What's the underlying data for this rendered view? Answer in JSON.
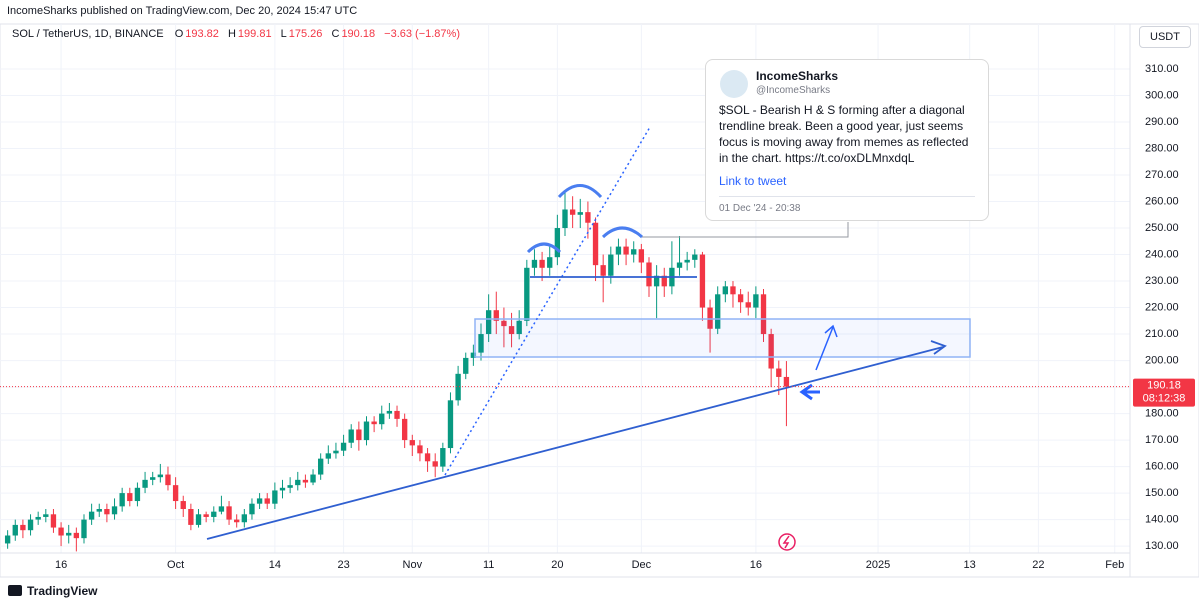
{
  "chart_data": {
    "type": "candlestick",
    "header": "IncomeSharks published on TradingView.com, Dec 20, 2024 15:47 UTC",
    "title": "SOL / TetherUS, 1D, BINANCE",
    "legend_labels": [
      "O",
      "H",
      "L",
      "C"
    ],
    "change_label": "−3.63 (−1.87%)",
    "currency": "USDT",
    "countdown": "08:12:38",
    "brand": "TradingView",
    "up_color": "#089981",
    "down_color": "#f23645",
    "grid": true,
    "x": [
      "2024-09-09",
      "2024-09-10",
      "2024-09-11",
      "2024-09-12",
      "2024-09-13",
      "2024-09-14",
      "2024-09-15",
      "2024-09-16",
      "2024-09-17",
      "2024-09-18",
      "2024-09-19",
      "2024-09-20",
      "2024-09-21",
      "2024-09-22",
      "2024-09-23",
      "2024-09-24",
      "2024-09-25",
      "2024-09-26",
      "2024-09-27",
      "2024-09-28",
      "2024-09-29",
      "2024-09-30",
      "2024-10-01",
      "2024-10-02",
      "2024-10-03",
      "2024-10-04",
      "2024-10-05",
      "2024-10-06",
      "2024-10-07",
      "2024-10-08",
      "2024-10-09",
      "2024-10-10",
      "2024-10-11",
      "2024-10-12",
      "2024-10-13",
      "2024-10-14",
      "2024-10-15",
      "2024-10-16",
      "2024-10-17",
      "2024-10-18",
      "2024-10-19",
      "2024-10-20",
      "2024-10-21",
      "2024-10-22",
      "2024-10-23",
      "2024-10-24",
      "2024-10-25",
      "2024-10-26",
      "2024-10-27",
      "2024-10-28",
      "2024-10-29",
      "2024-10-30",
      "2024-10-31",
      "2024-11-01",
      "2024-11-02",
      "2024-11-03",
      "2024-11-04",
      "2024-11-05",
      "2024-11-06",
      "2024-11-07",
      "2024-11-08",
      "2024-11-09",
      "2024-11-10",
      "2024-11-11",
      "2024-11-12",
      "2024-11-13",
      "2024-11-14",
      "2024-11-15",
      "2024-11-16",
      "2024-11-17",
      "2024-11-18",
      "2024-11-19",
      "2024-11-20",
      "2024-11-21",
      "2024-11-22",
      "2024-11-23",
      "2024-11-24",
      "2024-11-25",
      "2024-11-26",
      "2024-11-27",
      "2024-11-28",
      "2024-11-29",
      "2024-11-30",
      "2024-12-01",
      "2024-12-02",
      "2024-12-03",
      "2024-12-04",
      "2024-12-05",
      "2024-12-06",
      "2024-12-07",
      "2024-12-08",
      "2024-12-09",
      "2024-12-10",
      "2024-12-11",
      "2024-12-12",
      "2024-12-13",
      "2024-12-14",
      "2024-12-15",
      "2024-12-16",
      "2024-12-17",
      "2024-12-18",
      "2024-12-19",
      "2024-12-20"
    ],
    "open": [
      131,
      134,
      138,
      136,
      140,
      141,
      142,
      137,
      134,
      135,
      133,
      140,
      143,
      144,
      142,
      145,
      150,
      147,
      152,
      155,
      156,
      157,
      153,
      147,
      144,
      138,
      142,
      141,
      143,
      145,
      140,
      139,
      142,
      146,
      148,
      146,
      151,
      152,
      153,
      155,
      154,
      157,
      163,
      165,
      166,
      169,
      174,
      170,
      177,
      176,
      180,
      181,
      178,
      170,
      168,
      165,
      162,
      160,
      167,
      185,
      195,
      201,
      203,
      210,
      219,
      215,
      213,
      210,
      215,
      235,
      238,
      235,
      239,
      250,
      257,
      255,
      256,
      252,
      236,
      232,
      240,
      243,
      240,
      242,
      237,
      228,
      232,
      228,
      235,
      237,
      238,
      240,
      220,
      212,
      225,
      228,
      225,
      222,
      220,
      225,
      210,
      197,
      193.82
    ],
    "high": [
      136,
      140,
      140,
      142,
      143,
      144,
      144,
      139,
      138,
      137,
      142,
      146,
      146,
      146,
      148,
      152,
      152,
      154,
      158,
      158,
      161,
      160,
      156,
      149,
      146,
      144,
      143,
      145,
      149,
      147,
      142,
      144,
      148,
      150,
      150,
      154,
      155,
      156,
      158,
      157,
      159,
      165,
      168,
      169,
      172,
      176,
      177,
      179,
      179,
      183,
      184,
      183,
      180,
      172,
      170,
      167,
      165,
      169,
      188,
      198,
      203,
      206,
      214,
      225,
      226,
      220,
      218,
      219,
      238,
      242,
      241,
      243,
      255,
      264,
      262,
      261,
      260,
      254,
      240,
      243,
      246,
      246,
      245,
      244,
      239,
      236,
      235,
      245,
      247,
      241,
      242,
      241,
      223,
      228,
      230,
      230,
      227,
      226,
      228,
      227,
      212,
      200,
      199.81
    ],
    "low": [
      129,
      132,
      133,
      134,
      138,
      139,
      135,
      130,
      131,
      128,
      131,
      138,
      141,
      139,
      140,
      143,
      145,
      145,
      150,
      153,
      154,
      151,
      144,
      141,
      136,
      137,
      139,
      139,
      142,
      138,
      137,
      137,
      140,
      144,
      144,
      144,
      148,
      150,
      151,
      152,
      153,
      155,
      161,
      163,
      164,
      167,
      166,
      168,
      173,
      174,
      178,
      175,
      167,
      164,
      162,
      158,
      156,
      158,
      165,
      183,
      193,
      198,
      200,
      207,
      210,
      205,
      205,
      208,
      213,
      232,
      230,
      232,
      236,
      247,
      250,
      250,
      246,
      230,
      222,
      229,
      236,
      236,
      237,
      233,
      224,
      216,
      224,
      225,
      232,
      234,
      235,
      215,
      203,
      210,
      222,
      220,
      218,
      217,
      216,
      207,
      190,
      187,
      175.26
    ],
    "close": [
      134,
      138,
      136,
      140,
      141,
      142,
      137,
      134,
      135,
      133,
      140,
      143,
      144,
      142,
      145,
      150,
      147,
      152,
      155,
      156,
      157,
      153,
      147,
      144,
      138,
      142,
      141,
      143,
      145,
      140,
      139,
      142,
      146,
      148,
      146,
      151,
      152,
      153,
      155,
      154,
      157,
      163,
      165,
      166,
      169,
      174,
      170,
      177,
      176,
      180,
      181,
      178,
      170,
      168,
      165,
      162,
      160,
      167,
      185,
      195,
      201,
      203,
      210,
      219,
      215,
      213,
      210,
      215,
      235,
      238,
      235,
      239,
      250,
      257,
      255,
      256,
      252,
      236,
      232,
      240,
      243,
      240,
      242,
      237,
      228,
      232,
      228,
      235,
      237,
      238,
      240,
      220,
      212,
      225,
      228,
      225,
      222,
      220,
      225,
      210,
      197,
      193.82,
      190.18
    ],
    "xlim": [
      "2024-09-08",
      "2025-02-03"
    ],
    "xticks": [
      {
        "value": "2024-09-16",
        "label": "16"
      },
      {
        "value": "2024-10-01",
        "label": "Oct"
      },
      {
        "value": "2024-10-14",
        "label": "14"
      },
      {
        "value": "2024-10-23",
        "label": "23"
      },
      {
        "value": "2024-11-01",
        "label": "Nov"
      },
      {
        "value": "2024-11-11",
        "label": "11"
      },
      {
        "value": "2024-11-20",
        "label": "20"
      },
      {
        "value": "2024-12-01",
        "label": "Dec"
      },
      {
        "value": "2024-12-16",
        "label": "16"
      },
      {
        "value": "2025-01-01",
        "label": "2025"
      },
      {
        "value": "2025-01-13",
        "label": "13"
      },
      {
        "value": "2025-01-22",
        "label": "22"
      },
      {
        "value": "2025-02-01",
        "label": "Feb"
      }
    ],
    "ylim": [
      127.4,
      318.3
    ],
    "yticks": [
      {
        "value": 130,
        "label": "130.00"
      },
      {
        "value": 140,
        "label": "140.00"
      },
      {
        "value": 150,
        "label": "150.00"
      },
      {
        "value": 160,
        "label": "160.00"
      },
      {
        "value": 170,
        "label": "170.00"
      },
      {
        "value": 180,
        "label": "180.00"
      },
      {
        "value": 190,
        "label": "190.00"
      },
      {
        "value": 200,
        "label": "200.00"
      },
      {
        "value": 210,
        "label": "210.00"
      },
      {
        "value": 220,
        "label": "220.00"
      },
      {
        "value": 230,
        "label": "230.00"
      },
      {
        "value": 240,
        "label": "240.00"
      },
      {
        "value": 250,
        "label": "250.00"
      },
      {
        "value": 260,
        "label": "260.00"
      },
      {
        "value": 270,
        "label": "270.00"
      },
      {
        "value": 280,
        "label": "280.00"
      },
      {
        "value": 290,
        "label": "290.00"
      },
      {
        "value": 300,
        "label": "300.00"
      },
      {
        "value": 310,
        "label": "310.00"
      }
    ],
    "tweet": {
      "name": "IncomeSharks",
      "handle": "@IncomeSharks",
      "text": "$SOL - Bearish H & S forming after a diagonal trendline break. Been a good year, just seems focus is moving away from memes as reflected in the chart. https://t.co/oxDLMnxdqL",
      "link": "Link to tweet",
      "date": "01 Dec '24 - 20:38"
    }
  }
}
